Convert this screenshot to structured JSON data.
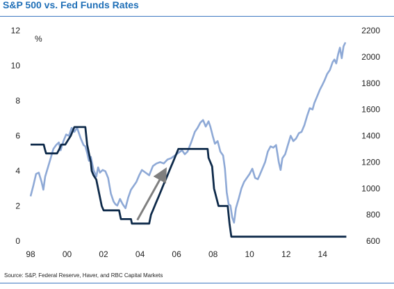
{
  "title": "S&P 500 vs. Fed Funds Rates",
  "source": "Source: S&P, Federal Reserve, Haver, and RBC Capital Markets",
  "colors": {
    "title": "#1f6fb7",
    "rule": "#3c78c0",
    "sp500": "#8ea9d6",
    "fedfunds": "#0e2a4a",
    "arrow": "#7f7f7f"
  },
  "chart_data": {
    "type": "line",
    "title": "S&P 500 vs. Fed Funds Rates",
    "xlabel": "",
    "ylabel_left": "%",
    "ylabel_right": "",
    "x_ticks": [
      "98",
      "00",
      "02",
      "04",
      "06",
      "08",
      "10",
      "12",
      "14"
    ],
    "x_tick_values": [
      1998,
      2000,
      2002,
      2004,
      2006,
      2008,
      2010,
      2012,
      2014
    ],
    "xlim": [
      1998,
      2015.4
    ],
    "ylim_left": [
      0,
      12
    ],
    "y_left_ticks": [
      0,
      2,
      4,
      6,
      8,
      10,
      12
    ],
    "ylim_right": [
      600,
      2200
    ],
    "y_right_ticks": [
      600,
      800,
      1000,
      1200,
      1400,
      1600,
      1800,
      2000,
      2200
    ],
    "grid": false,
    "legend": "none",
    "series": [
      {
        "axis": "right",
        "x": [
          1998.0,
          1998.15,
          1998.3,
          1998.45,
          1998.6,
          1998.7,
          1998.8,
          1998.95,
          1999.1,
          1999.25,
          1999.4,
          1999.55,
          1999.65,
          1999.8,
          1999.95,
          2000.1,
          2000.25,
          2000.4,
          2000.55,
          2000.65,
          2000.75,
          2000.9,
          2001.0,
          2001.1,
          2001.2,
          2001.3,
          2001.45,
          2001.6,
          2001.7,
          2001.8,
          2001.95,
          2002.1,
          2002.25,
          2002.4,
          2002.55,
          2002.65,
          2002.75,
          2002.9,
          2003.05,
          2003.2,
          2003.35,
          2003.5,
          2003.65,
          2003.8,
          2003.95,
          2004.1,
          2004.3,
          2004.5,
          2004.7,
          2004.9,
          2005.1,
          2005.3,
          2005.5,
          2005.7,
          2005.9,
          2006.1,
          2006.3,
          2006.45,
          2006.6,
          2006.8,
          2007.0,
          2007.15,
          2007.3,
          2007.45,
          2007.6,
          2007.75,
          2007.85,
          2008.0,
          2008.1,
          2008.25,
          2008.4,
          2008.55,
          2008.65,
          2008.75,
          2008.85,
          2008.95,
          2009.05,
          2009.15,
          2009.25,
          2009.4,
          2009.55,
          2009.7,
          2009.85,
          2010.0,
          2010.15,
          2010.3,
          2010.45,
          2010.55,
          2010.7,
          2010.85,
          2011.0,
          2011.15,
          2011.3,
          2011.45,
          2011.6,
          2011.7,
          2011.8,
          2011.95,
          2012.1,
          2012.25,
          2012.4,
          2012.55,
          2012.7,
          2012.85,
          2013.0,
          2013.15,
          2013.3,
          2013.45,
          2013.55,
          2013.7,
          2013.85,
          2014.0,
          2014.1,
          2014.25,
          2014.4,
          2014.55,
          2014.65,
          2014.75,
          2014.85,
          2014.95,
          2015.05,
          2015.15,
          2015.25
        ],
        "values": [
          940,
          1020,
          1110,
          1120,
          1050,
          990,
          1090,
          1160,
          1230,
          1300,
          1330,
          1350,
          1290,
          1360,
          1410,
          1400,
          1460,
          1430,
          1460,
          1420,
          1380,
          1330,
          1320,
          1270,
          1210,
          1240,
          1140,
          1090,
          1160,
          1120,
          1140,
          1130,
          1080,
          960,
          900,
          880,
          870,
          920,
          880,
          850,
          930,
          990,
          1020,
          1050,
          1100,
          1140,
          1120,
          1100,
          1170,
          1190,
          1200,
          1190,
          1220,
          1230,
          1250,
          1270,
          1290,
          1260,
          1280,
          1350,
          1430,
          1460,
          1500,
          1520,
          1470,
          1510,
          1470,
          1390,
          1340,
          1360,
          1280,
          1250,
          1150,
          970,
          880,
          870,
          780,
          740,
          850,
          920,
          1000,
          1050,
          1080,
          1110,
          1150,
          1080,
          1070,
          1100,
          1150,
          1200,
          1280,
          1320,
          1310,
          1330,
          1200,
          1140,
          1230,
          1260,
          1330,
          1400,
          1360,
          1380,
          1420,
          1430,
          1480,
          1550,
          1610,
          1600,
          1650,
          1700,
          1750,
          1790,
          1820,
          1870,
          1900,
          1960,
          1980,
          1950,
          2020,
          2070,
          1990,
          2080,
          2110
        ]
      },
      {
        "axis": "left",
        "x": [
          1998.0,
          1998.72,
          1998.78,
          1998.85,
          1999.45,
          1999.58,
          1999.68,
          1999.9,
          2000.05,
          2000.2,
          2000.4,
          2001.0,
          2001.1,
          2001.2,
          2001.3,
          2001.35,
          2001.45,
          2001.6,
          2001.7,
          2001.8,
          2001.9,
          2002.0,
          2002.85,
          2002.95,
          2003.5,
          2003.55,
          2004.5,
          2004.55,
          2004.6,
          2004.7,
          2004.8,
          2004.9,
          2005.0,
          2005.1,
          2005.2,
          2005.3,
          2005.4,
          2005.5,
          2005.6,
          2005.7,
          2005.8,
          2005.9,
          2006.0,
          2006.1,
          2006.2,
          2006.3,
          2006.4,
          2006.5,
          2007.7,
          2007.75,
          2007.85,
          2007.95,
          2008.05,
          2008.3,
          2008.8,
          2008.9,
          2009.0,
          2015.3
        ],
        "values": [
          5.5,
          5.5,
          5.25,
          5.0,
          5.0,
          5.25,
          5.5,
          5.5,
          5.75,
          6.0,
          6.5,
          6.5,
          5.5,
          5.0,
          4.5,
          4.0,
          3.75,
          3.5,
          3.0,
          2.5,
          2.0,
          1.75,
          1.75,
          1.25,
          1.25,
          1.0,
          1.0,
          1.25,
          1.5,
          1.75,
          2.0,
          2.25,
          2.5,
          2.75,
          3.0,
          3.25,
          3.5,
          3.75,
          4.0,
          4.25,
          4.5,
          4.75,
          5.0,
          5.25,
          5.25,
          5.25,
          5.25,
          5.25,
          5.25,
          4.75,
          4.5,
          4.25,
          3.0,
          2.0,
          2.0,
          1.0,
          0.25,
          0.25
        ]
      }
    ],
    "annotations": [
      {
        "type": "arrow",
        "from": [
          2003.85,
          1.2
        ],
        "to": [
          2005.35,
          4.0
        ]
      }
    ]
  }
}
